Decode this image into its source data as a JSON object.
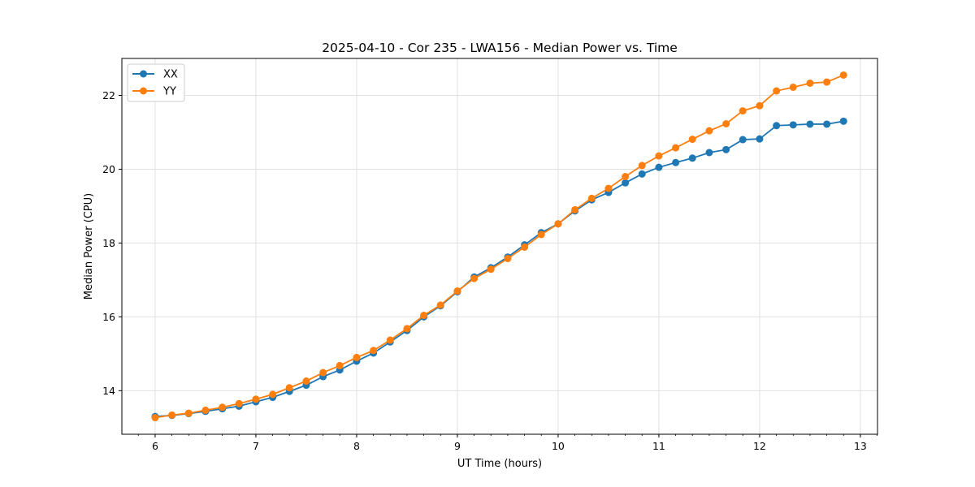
{
  "chart_data": {
    "type": "line",
    "title": "2025-04-10 - Cor 235 - LWA156 - Median Power vs. Time",
    "xlabel": "UT Time (hours)",
    "ylabel": "Median Power (CPU)",
    "xlim": [
      5.67,
      13.17
    ],
    "ylim": [
      12.82,
      23.0
    ],
    "xticks": [
      6,
      7,
      8,
      9,
      10,
      11,
      12,
      13
    ],
    "xtick_labels": [
      "6",
      "7",
      "8",
      "9",
      "10",
      "11",
      "12",
      "13"
    ],
    "yticks": [
      14,
      16,
      18,
      20,
      22
    ],
    "ytick_labels": [
      "14",
      "16",
      "18",
      "20",
      "22"
    ],
    "grid": true,
    "legend_position": "top-left",
    "x": [
      6.0,
      6.167,
      6.333,
      6.5,
      6.667,
      6.833,
      7.0,
      7.167,
      7.333,
      7.5,
      7.667,
      7.833,
      8.0,
      8.167,
      8.333,
      8.5,
      8.667,
      8.833,
      9.0,
      9.167,
      9.333,
      9.5,
      9.667,
      9.833,
      10.0,
      10.167,
      10.333,
      10.5,
      10.667,
      10.833,
      11.0,
      11.167,
      11.333,
      11.5,
      11.667,
      11.833,
      12.0,
      12.167,
      12.333,
      12.5,
      12.667,
      12.833
    ],
    "series": [
      {
        "name": "XX",
        "color": "#1f77b4",
        "values": [
          13.3,
          13.33,
          13.38,
          13.44,
          13.51,
          13.58,
          13.7,
          13.82,
          13.98,
          14.15,
          14.38,
          14.56,
          14.8,
          15.02,
          15.32,
          15.63,
          16.0,
          16.3,
          16.68,
          17.08,
          17.33,
          17.62,
          17.95,
          18.28,
          18.52,
          18.87,
          19.17,
          19.37,
          19.63,
          19.87,
          20.05,
          20.18,
          20.3,
          20.45,
          20.53,
          20.8,
          20.82,
          21.18,
          21.2,
          21.22,
          21.22,
          21.3
        ]
      },
      {
        "name": "YY",
        "color": "#ff7f0e",
        "values": [
          13.27,
          13.34,
          13.39,
          13.47,
          13.55,
          13.65,
          13.77,
          13.9,
          14.08,
          14.26,
          14.49,
          14.68,
          14.9,
          15.09,
          15.37,
          15.68,
          16.04,
          16.32,
          16.7,
          17.04,
          17.29,
          17.58,
          17.89,
          18.23,
          18.52,
          18.9,
          19.21,
          19.48,
          19.8,
          20.1,
          20.36,
          20.58,
          20.81,
          21.04,
          21.23,
          21.58,
          21.72,
          22.12,
          22.22,
          22.33,
          22.36,
          22.55
        ]
      }
    ]
  },
  "colors": {
    "axis": "#000000",
    "grid": "#e0e0e0",
    "background": "#ffffff",
    "legend_border": "#cccccc"
  }
}
